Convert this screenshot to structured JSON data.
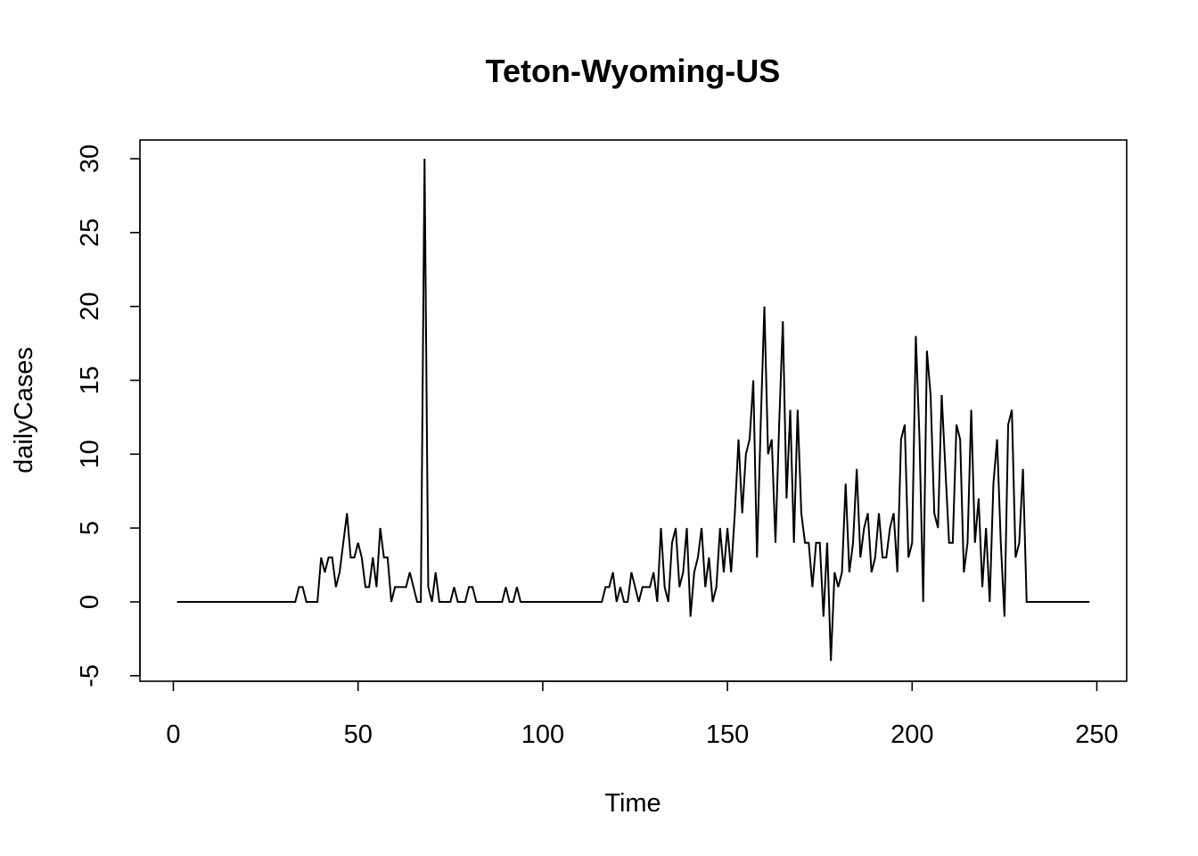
{
  "chart_data": {
    "type": "line",
    "title": "Teton-Wyoming-US",
    "xlabel": "Time",
    "ylabel": "dailyCases",
    "xlim": [
      0,
      250
    ],
    "ylim": [
      -5,
      30
    ],
    "x_ticks": [
      0,
      50,
      100,
      150,
      200,
      250
    ],
    "y_ticks": [
      -5,
      0,
      5,
      10,
      15,
      20,
      25,
      30
    ],
    "grid": false,
    "legend": "none",
    "line_color": "#000000",
    "x_start": 1,
    "series": [
      {
        "values": [
          0,
          0,
          0,
          0,
          0,
          0,
          0,
          0,
          0,
          0,
          0,
          0,
          0,
          0,
          0,
          0,
          0,
          0,
          0,
          0,
          0,
          0,
          0,
          0,
          0,
          0,
          0,
          0,
          0,
          0,
          0,
          0,
          0,
          1,
          1,
          0,
          0,
          0,
          0,
          3,
          2,
          3,
          3,
          1,
          2,
          4,
          6,
          3,
          3,
          4,
          3,
          1,
          1,
          3,
          1,
          5,
          3,
          3,
          0,
          1,
          1,
          1,
          1,
          2,
          1,
          0,
          0,
          30,
          1,
          0,
          2,
          0,
          0,
          0,
          0,
          1,
          0,
          0,
          0,
          1,
          1,
          0,
          0,
          0,
          0,
          0,
          0,
          0,
          0,
          1,
          0,
          0,
          1,
          0,
          0,
          0,
          0,
          0,
          0,
          0,
          0,
          0,
          0,
          0,
          0,
          0,
          0,
          0,
          0,
          0,
          0,
          0,
          0,
          0,
          0,
          0,
          1,
          1,
          2,
          0,
          1,
          0,
          0,
          2,
          1,
          0,
          1,
          1,
          1,
          2,
          0,
          5,
          1,
          0,
          4,
          5,
          1,
          2,
          5,
          -1,
          2,
          3,
          5,
          1,
          3,
          0,
          1,
          5,
          2,
          5,
          2,
          6,
          11,
          6,
          10,
          11,
          15,
          3,
          12,
          20,
          10,
          11,
          4,
          12,
          19,
          7,
          13,
          4,
          13,
          6,
          4,
          4,
          1,
          4,
          4,
          -1,
          4,
          -4,
          2,
          1,
          2,
          8,
          2,
          4,
          9,
          3,
          5,
          6,
          2,
          3,
          6,
          3,
          3,
          5,
          6,
          2,
          11,
          12,
          3,
          4,
          18,
          11,
          0,
          17,
          14,
          6,
          5,
          14,
          9,
          4,
          4,
          12,
          11,
          2,
          4,
          13,
          4,
          7,
          1,
          5,
          0,
          8,
          11,
          4,
          -1,
          12,
          13,
          3,
          4,
          9,
          0,
          0,
          0,
          0,
          0,
          0,
          0,
          0,
          0,
          0,
          0,
          0,
          0,
          0,
          0,
          0,
          0,
          0
        ]
      }
    ]
  }
}
